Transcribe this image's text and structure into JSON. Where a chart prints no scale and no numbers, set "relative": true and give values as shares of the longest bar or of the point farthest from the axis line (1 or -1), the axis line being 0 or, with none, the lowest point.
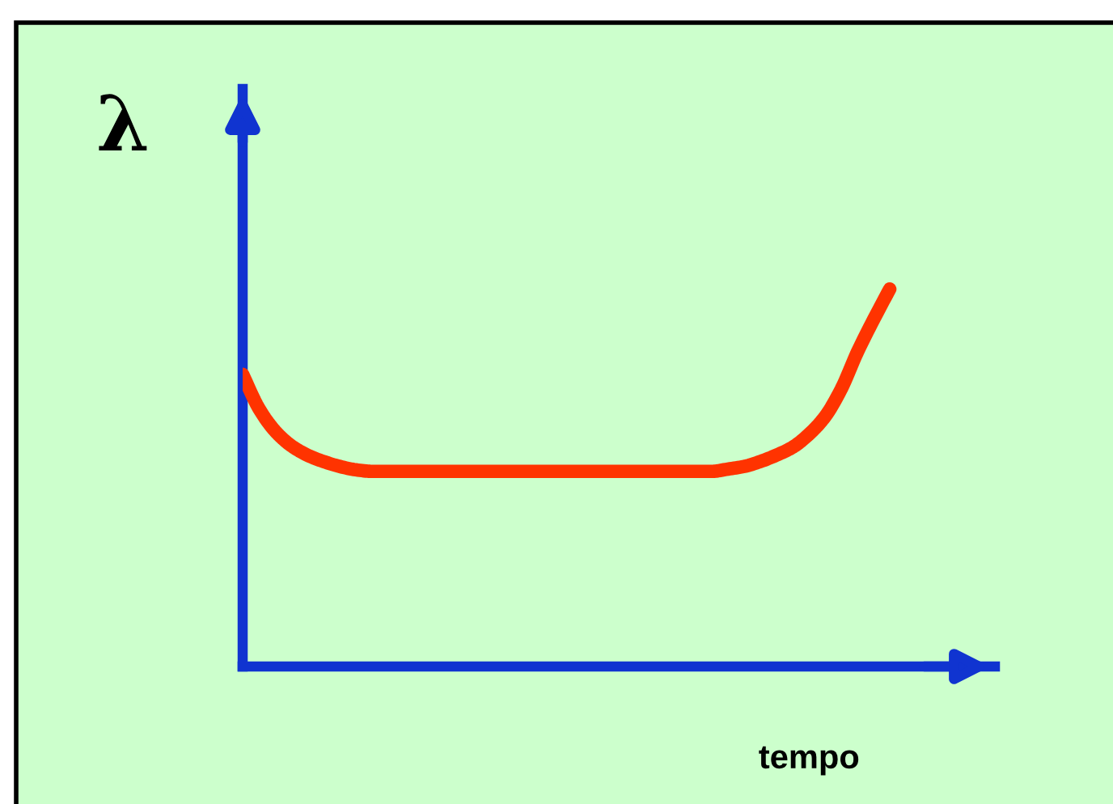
{
  "chart_data": {
    "type": "line",
    "relative": true,
    "xlabel": "tempo",
    "ylabel": "λ",
    "categories": [
      null,
      null,
      null,
      null,
      null,
      null,
      null,
      null,
      null,
      null,
      null,
      null,
      null,
      null,
      null,
      null,
      null,
      null,
      null,
      null,
      null,
      null,
      null,
      null,
      null,
      null,
      null,
      null,
      null,
      null,
      null,
      null,
      null,
      null,
      null,
      null,
      null,
      null,
      null,
      null,
      null,
      null,
      null,
      null,
      null,
      null,
      null
    ],
    "series": [
      {
        "color": "#ff3300",
        "values": [
          0.774,
          0.684,
          0.624,
          0.585,
          0.56,
          0.543,
          0.53,
          0.521,
          0.517,
          0.517,
          0.517,
          0.517,
          0.517,
          0.517,
          0.517,
          0.517,
          0.517,
          0.517,
          0.517,
          0.517,
          0.517,
          0.517,
          0.517,
          0.517,
          0.517,
          0.517,
          0.517,
          0.517,
          0.517,
          0.517,
          0.523,
          0.53,
          0.543,
          0.56,
          0.581,
          0.615,
          0.662,
          0.735,
          0.833,
          0.919,
          1.0,
          null,
          null,
          null,
          null,
          null,
          null
        ]
      }
    ]
  }
}
